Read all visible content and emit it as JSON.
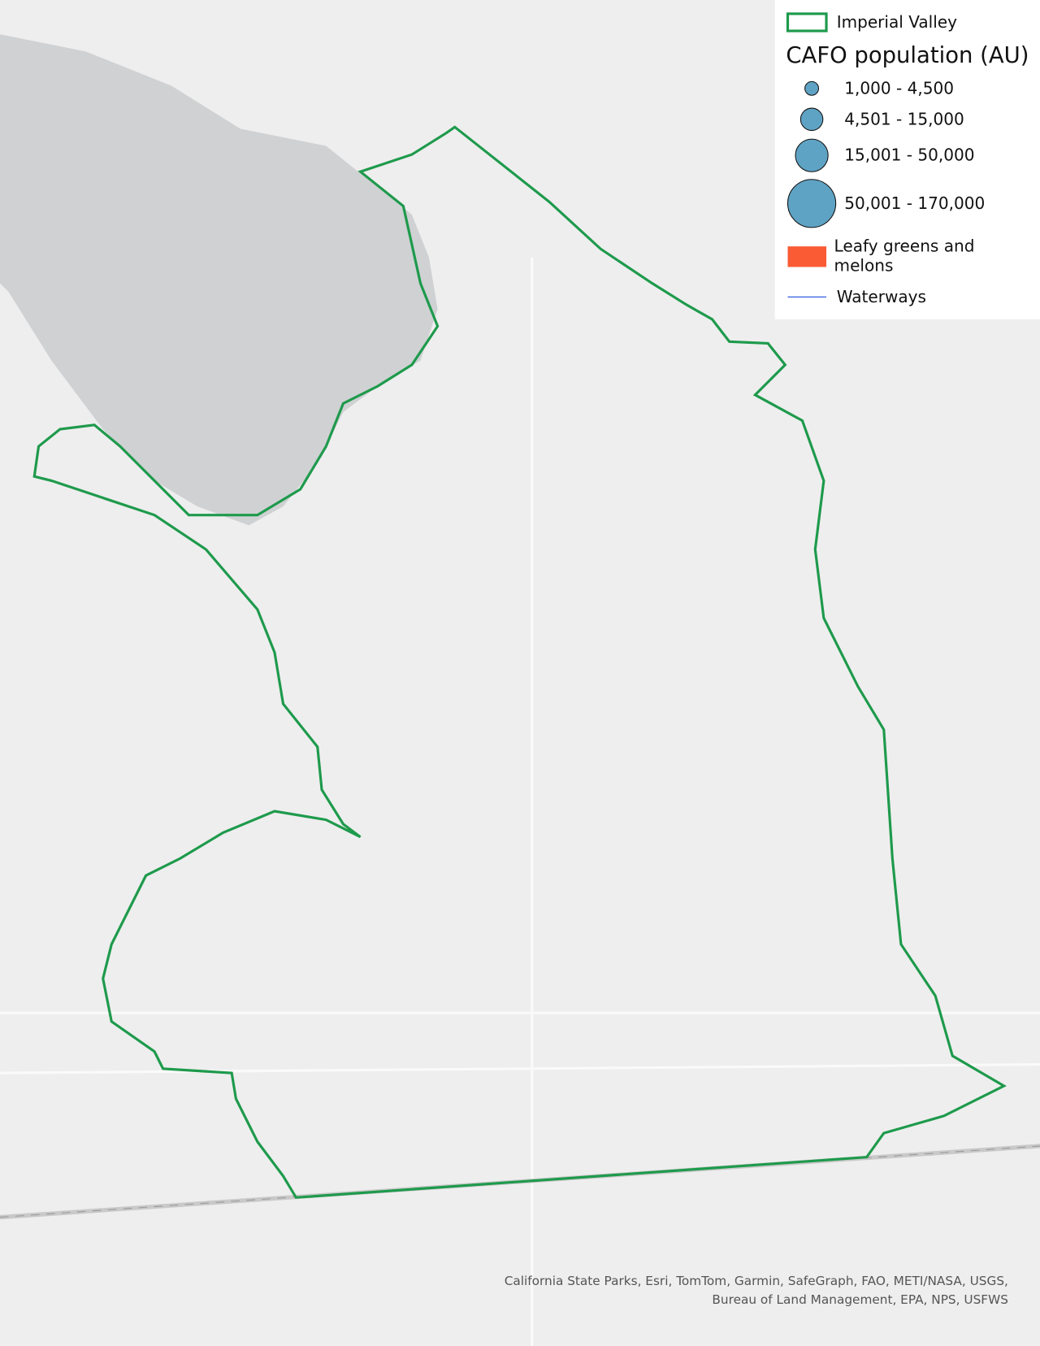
{
  "legend": {
    "boundary": "Imperial Valley",
    "cafo_title": "CAFO population (AU)",
    "cafo_classes": [
      "1,000 - 4,500",
      "4,501 - 15,000",
      "15,001 - 50,000",
      "50,001 - 170,000"
    ],
    "crops": "Leafy greens and melons",
    "waterways": "Waterways"
  },
  "attribution": [
    "California State Parks, Esri, TomTom, Garmin, SafeGraph, FAO, METI/NASA, USGS,",
    "Bureau of Land Management, EPA, NPS, USFWS"
  ]
}
